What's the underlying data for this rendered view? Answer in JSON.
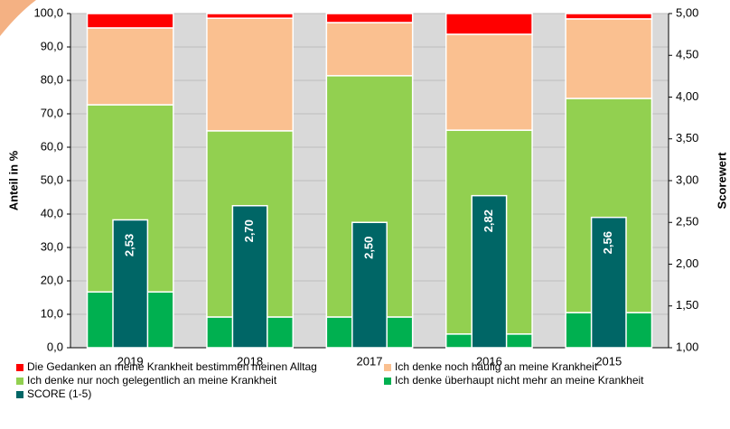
{
  "chart_data": {
    "type": "bar",
    "stacked": true,
    "categories": [
      "2019",
      "2018",
      "2017",
      "2016",
      "2015"
    ],
    "series": [
      {
        "name": "Die Gedanken an meine Krankheit bestimmen meinen Alltag",
        "color": "#ff0000",
        "values": [
          4.3,
          1.4,
          2.7,
          6.2,
          1.6
        ]
      },
      {
        "name": "Ich denke noch häufig an meine Krankheit",
        "color": "#fac090",
        "values": [
          23.0,
          33.7,
          15.9,
          28.7,
          23.8
        ]
      },
      {
        "name": "Ich denke nur noch gelegentlich an meine Krankheit",
        "color": "#92d050",
        "values": [
          56.0,
          55.7,
          72.2,
          61.0,
          64.1
        ]
      },
      {
        "name": "Ich denke überhaupt nicht mehr an meine Krankheit",
        "color": "#00b050",
        "values": [
          16.7,
          9.2,
          9.2,
          4.1,
          10.5
        ]
      },
      {
        "name": "SCORE (1-5)",
        "color": "#006666",
        "axis": "y2",
        "values": [
          2.53,
          2.7,
          2.5,
          2.82,
          2.56
        ],
        "value_labels": [
          "2,53",
          "2,70",
          "2,50",
          "2,82",
          "2,56"
        ]
      }
    ],
    "ylabel": "Anteil in %",
    "y2label": "Scorewert",
    "ylim": [
      0,
      100
    ],
    "yticks": [
      {
        "value": 0,
        "label": "0,0"
      },
      {
        "value": 10,
        "label": "10,0"
      },
      {
        "value": 20,
        "label": "20,0"
      },
      {
        "value": 30,
        "label": "30,0"
      },
      {
        "value": 40,
        "label": "40,0"
      },
      {
        "value": 50,
        "label": "50,0"
      },
      {
        "value": 60,
        "label": "60,0"
      },
      {
        "value": 70,
        "label": "70,0"
      },
      {
        "value": 80,
        "label": "80,0"
      },
      {
        "value": 90,
        "label": "90,0"
      },
      {
        "value": 100,
        "label": "100,0"
      }
    ],
    "y2lim": [
      1,
      5
    ],
    "y2ticks": [
      {
        "value": 1,
        "label": "1,00"
      },
      {
        "value": 1.5,
        "label": "1,50"
      },
      {
        "value": 2,
        "label": "2,00"
      },
      {
        "value": 2.5,
        "label": "2,50"
      },
      {
        "value": 3,
        "label": "3,00"
      },
      {
        "value": 3.5,
        "label": "3,50"
      },
      {
        "value": 4,
        "label": "4,00"
      },
      {
        "value": 4.5,
        "label": "4,50"
      },
      {
        "value": 5,
        "label": "5,00"
      }
    ],
    "grid": true,
    "legend": "bottom"
  }
}
